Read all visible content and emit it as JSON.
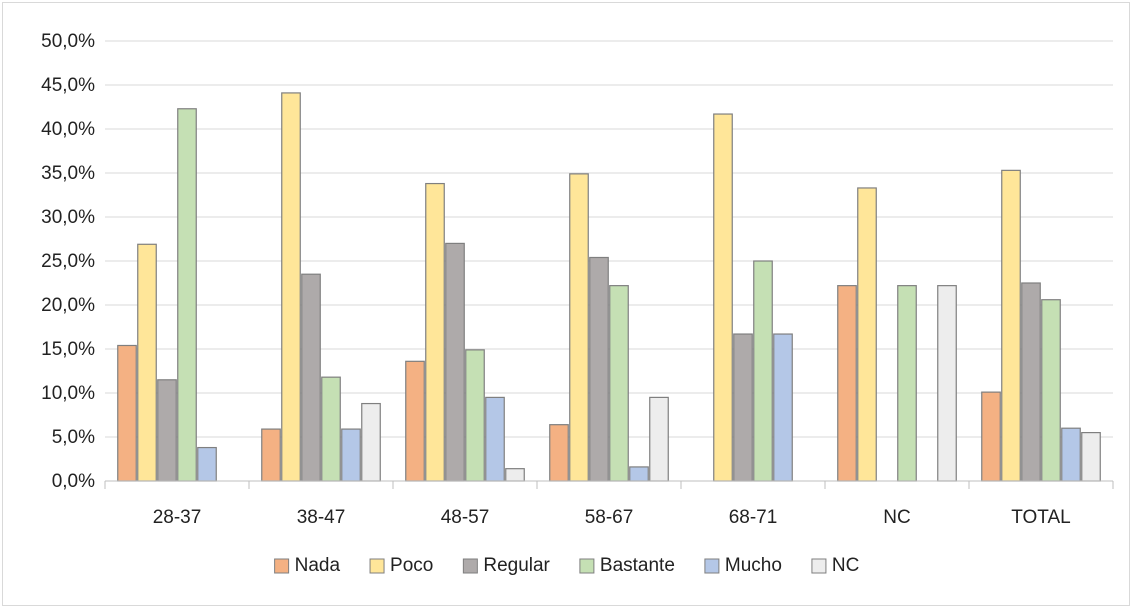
{
  "chart_data": {
    "type": "bar",
    "title": "",
    "xlabel": "",
    "ylabel": "",
    "ylim": [
      0,
      50
    ],
    "y_tick_step": 5,
    "y_tick_format": "percent-comma-1dp",
    "y_tick_labels": [
      "0,0%",
      "5,0%",
      "10,0%",
      "15,0%",
      "20,0%",
      "25,0%",
      "30,0%",
      "35,0%",
      "40,0%",
      "45,0%",
      "50,0%"
    ],
    "grid": true,
    "legend_position": "bottom",
    "categories": [
      "28-37",
      "38-47",
      "48-57",
      "58-67",
      "68-71",
      "NC",
      "TOTAL"
    ],
    "series": [
      {
        "name": "Nada",
        "color": "#f4b183",
        "values": [
          15.4,
          5.9,
          13.6,
          6.4,
          0.0,
          22.2,
          10.1
        ]
      },
      {
        "name": "Poco",
        "color": "#ffe699",
        "values": [
          26.9,
          44.1,
          33.8,
          34.9,
          41.7,
          33.3,
          35.3
        ]
      },
      {
        "name": "Regular",
        "color": "#aeaaaa",
        "values": [
          11.5,
          23.5,
          27.0,
          25.4,
          16.7,
          0.0,
          22.5
        ]
      },
      {
        "name": "Bastante",
        "color": "#c5e0b4",
        "values": [
          42.3,
          11.8,
          14.9,
          22.2,
          25.0,
          22.2,
          20.6
        ]
      },
      {
        "name": "Mucho",
        "color": "#b4c7e7",
        "values": [
          3.8,
          5.9,
          9.5,
          1.6,
          16.7,
          0.0,
          6.0
        ]
      },
      {
        "name": "NC",
        "color": "#ededed",
        "values": [
          0.0,
          8.8,
          1.4,
          9.5,
          0.0,
          22.2,
          5.5
        ]
      }
    ]
  }
}
